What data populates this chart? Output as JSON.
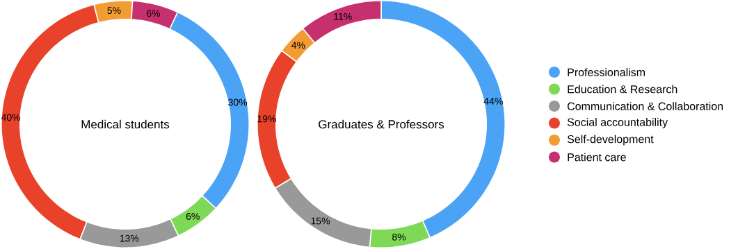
{
  "chart_data": [
    {
      "type": "donut",
      "title": "Medical students",
      "categories": [
        null,
        null,
        null,
        null,
        null,
        null
      ],
      "values": [
        30,
        6,
        13,
        40,
        5,
        6
      ],
      "colors": [
        "#4aa3f5",
        "#7ed957",
        "#999999",
        "#e8432a",
        "#f39c33",
        "#c7306f"
      ],
      "value_labels": [
        "30%",
        "6%",
        "13%",
        "40%",
        "5%",
        "6%"
      ]
    },
    {
      "type": "donut",
      "title": "Graduates & Professors",
      "categories": [
        "Professionalism",
        "Education & Research",
        "Communication & Collaboration",
        "Social accountability",
        "Self-development",
        "Patient care"
      ],
      "values": [
        44,
        8,
        15,
        19,
        4,
        11
      ],
      "colors": [
        "#4aa3f5",
        "#7ed957",
        "#999999",
        "#e8432a",
        "#f39c33",
        "#c7306f"
      ],
      "value_labels": [
        "44%",
        "8%",
        "15%",
        "19%",
        "4%",
        "11%"
      ],
      "legend": "right"
    }
  ]
}
